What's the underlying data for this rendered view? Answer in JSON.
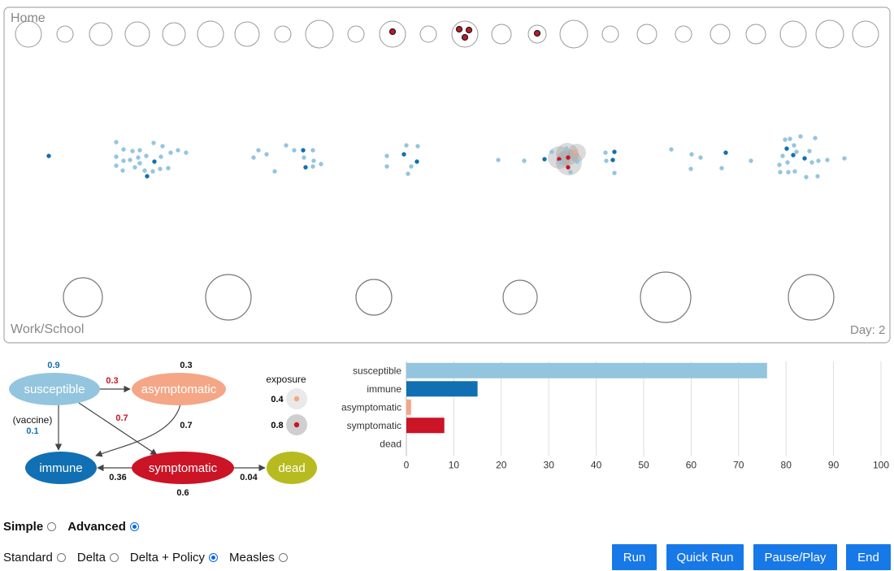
{
  "sim": {
    "home_label": "Home",
    "work_label": "Work/School",
    "day_label": "Day: 2"
  },
  "diagram": {
    "nodes": {
      "susceptible": "susceptible",
      "asymptomatic": "asymptomatic",
      "immune": "immune",
      "symptomatic": "symptomatic",
      "dead": "dead"
    },
    "values": {
      "sus_stay": "0.9",
      "sus_to_asym": "0.3",
      "asym_stay": "0.3",
      "sus_to_sym": "0.7",
      "asym_to_imm": "0.7",
      "vaccine_label": "(vaccine)",
      "vaccine_val": "0.1",
      "sym_to_imm": "0.36",
      "sym_stay": "0.6",
      "sym_to_dead": "0.04"
    },
    "exposure": {
      "title": "exposure",
      "low": "0.4",
      "high": "0.8"
    }
  },
  "chart_data": {
    "type": "bar",
    "orientation": "horizontal",
    "categories": [
      "susceptible",
      "immune",
      "asymptomatic",
      "symptomatic",
      "dead"
    ],
    "values": [
      76,
      15,
      1,
      8,
      0
    ],
    "colors": [
      "#94c5df",
      "#1170b3",
      "#f4a686",
      "#cb1426",
      "#b8bb1f"
    ],
    "xlim": [
      0,
      100
    ],
    "xticks": [
      "0",
      "10",
      "20",
      "30",
      "40",
      "50",
      "60",
      "70",
      "80",
      "90",
      "100"
    ],
    "grid": true
  },
  "controls": {
    "mode": [
      {
        "label": "Simple",
        "selected": false
      },
      {
        "label": "Advanced",
        "selected": true
      }
    ],
    "variant": [
      {
        "label": "Standard",
        "selected": false
      },
      {
        "label": "Delta",
        "selected": false
      },
      {
        "label": "Delta + Policy",
        "selected": true
      },
      {
        "label": "Measles",
        "selected": false
      }
    ],
    "buttons": {
      "run": "Run",
      "quick_run": "Quick Run",
      "pause_play": "Pause/Play",
      "end": "End"
    }
  },
  "colors": {
    "susceptible": "#94c5df",
    "immune": "#1170b3",
    "asymptomatic": "#f4a686",
    "symptomatic": "#cb1426",
    "dead": "#b8bb1f",
    "accent": "#1778e8"
  }
}
